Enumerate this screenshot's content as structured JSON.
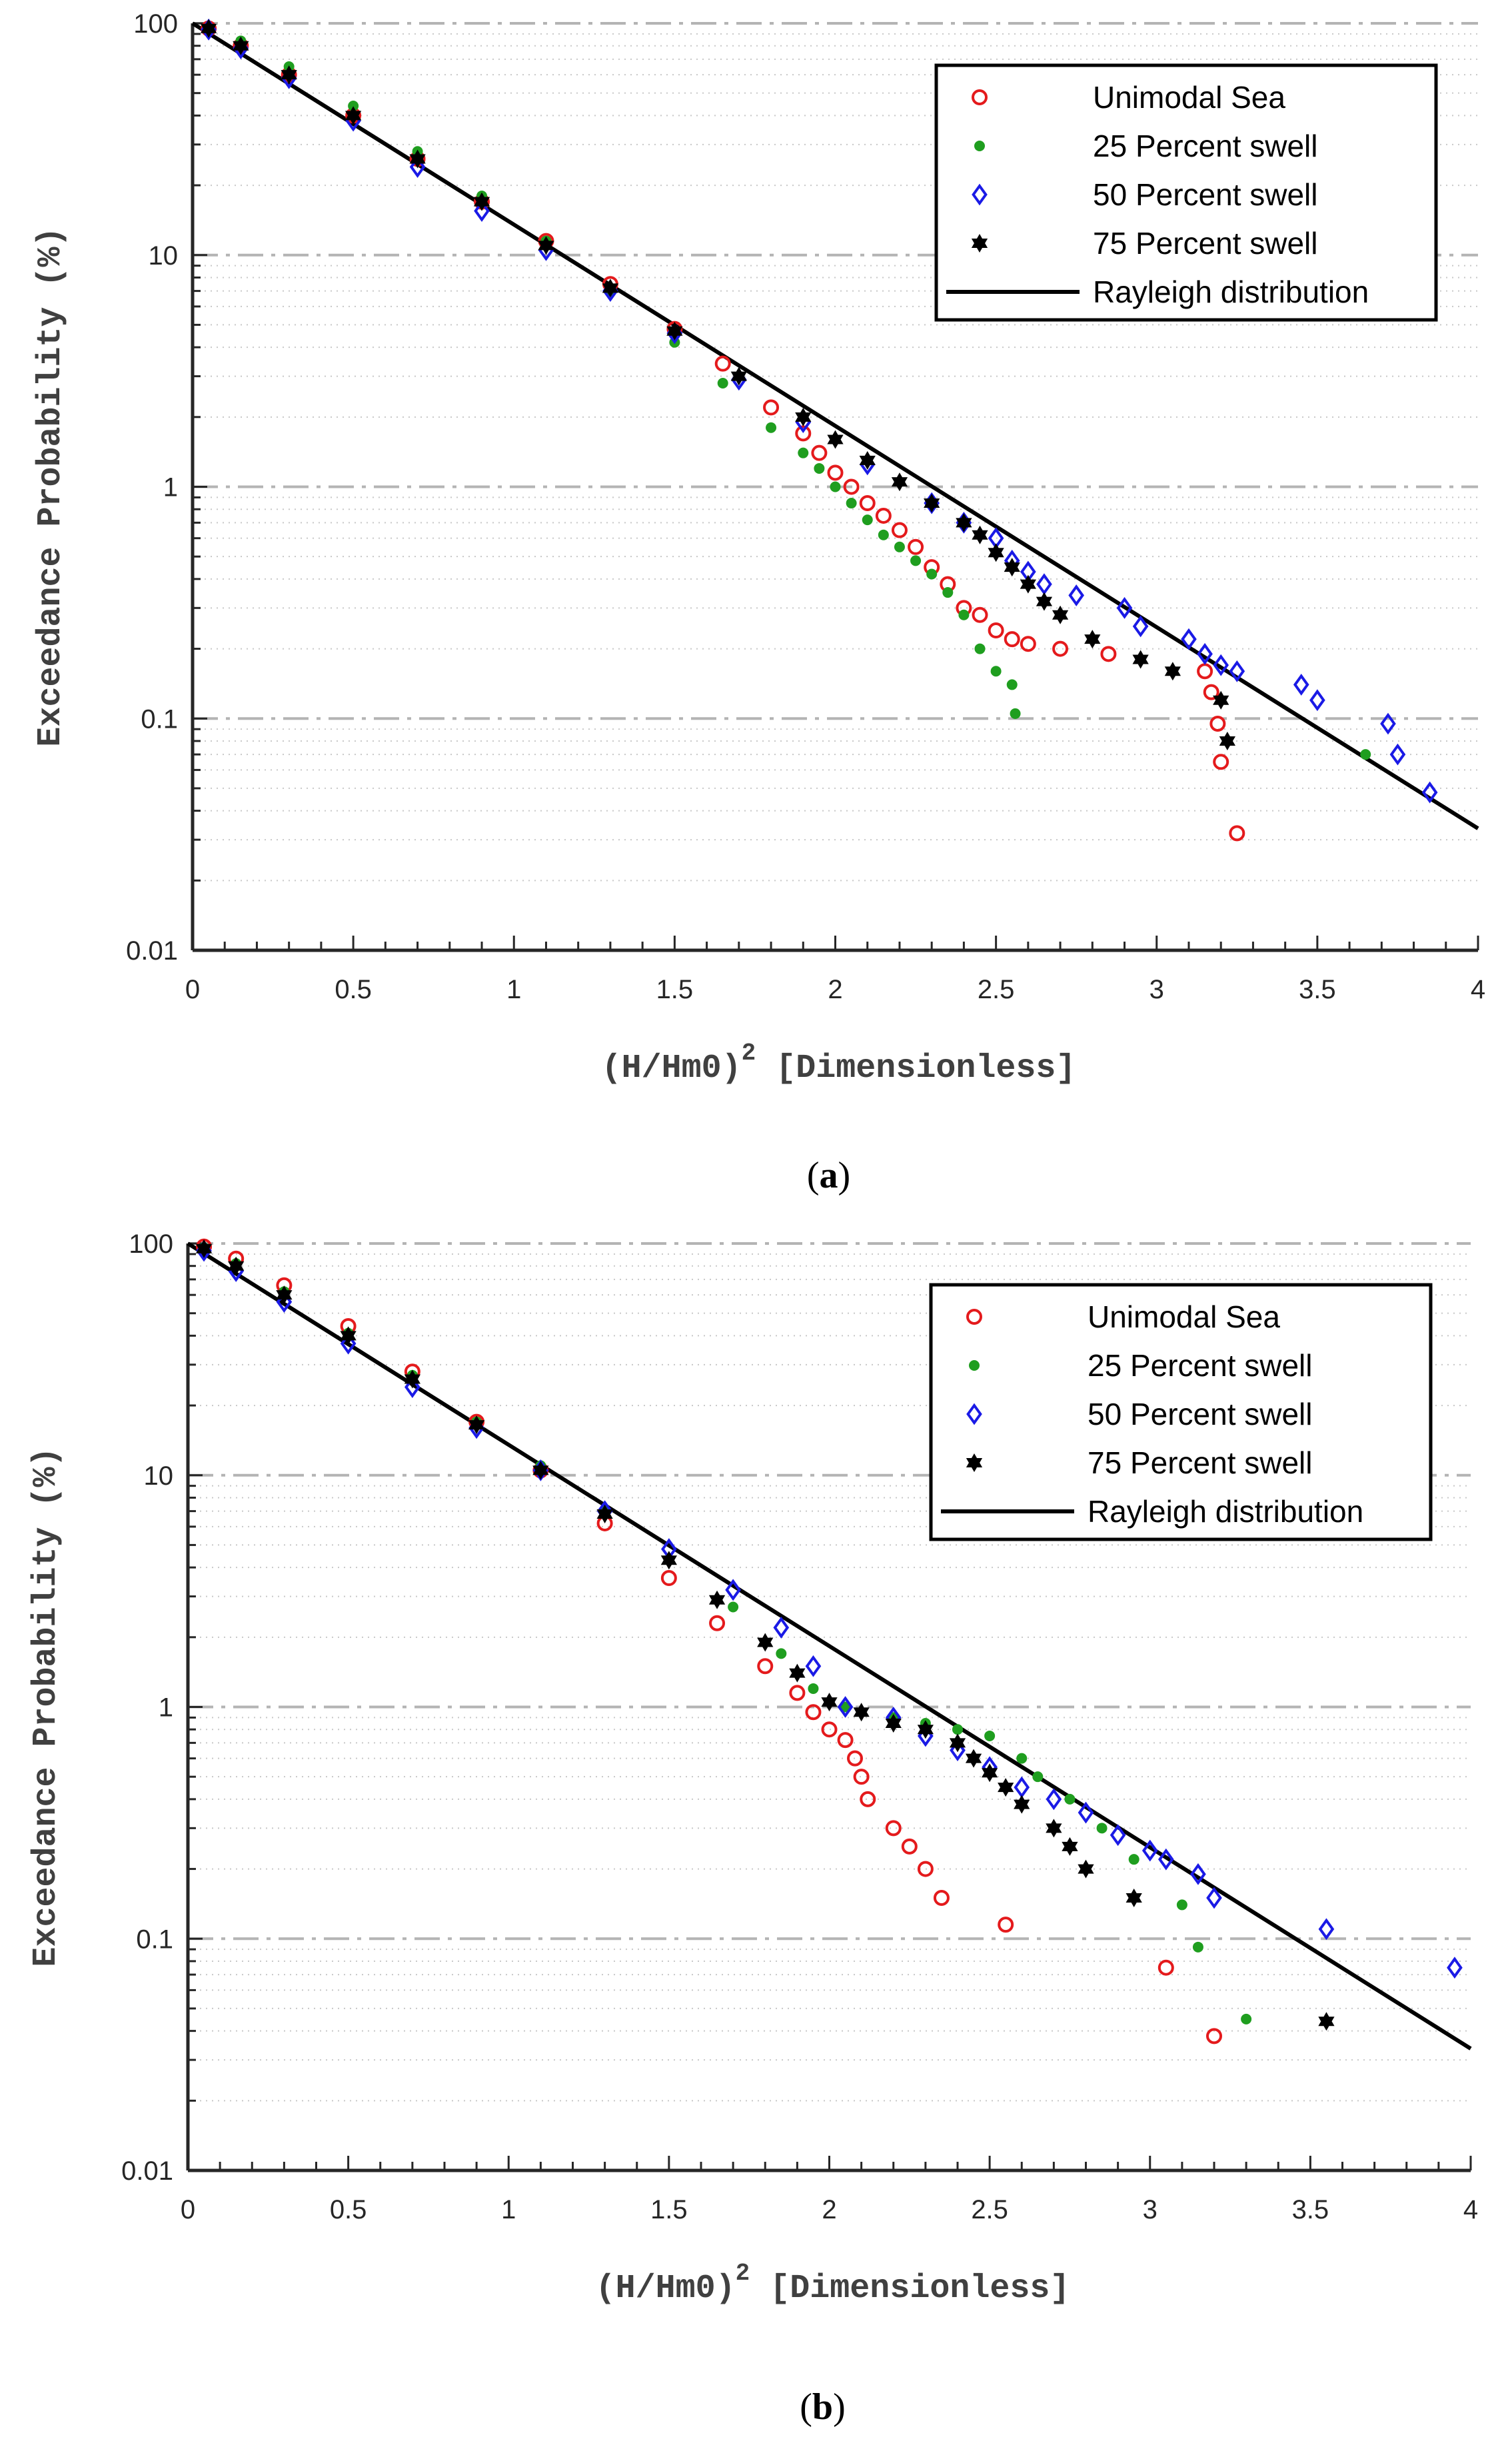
{
  "chart_data": [
    {
      "type": "scatter",
      "panel": "a",
      "caption_open": "(",
      "caption": "a",
      "caption_close": ")",
      "title": "",
      "xlabel": "(H/Hm0)",
      "xlabel_exponent": "2",
      "xlabel_suffix": "[Dimensionless]",
      "ylabel": "Exceedance Probability (%)",
      "xlim": [
        0,
        4
      ],
      "ylim": [
        0.01,
        100
      ],
      "yscale": "log",
      "grid": true,
      "legend_position": "top-right",
      "x_tick_labels": [
        "0",
        "0.5",
        "1",
        "1.5",
        "2",
        "2.5",
        "3",
        "3.5",
        "4"
      ],
      "y_tick_labels": [
        "0.01",
        "0.1",
        "1",
        "10",
        "100"
      ],
      "series": [
        {
          "name": "Unimodal Sea",
          "marker": "circle",
          "color": "#e41a1c",
          "x": [
            0.05,
            0.15,
            0.3,
            0.5,
            0.7,
            0.9,
            1.1,
            1.3,
            1.5,
            1.65,
            1.8,
            1.9,
            1.95,
            2.0,
            2.05,
            2.1,
            2.15,
            2.2,
            2.25,
            2.3,
            2.35,
            2.4,
            2.45,
            2.5,
            2.55,
            2.6,
            2.7,
            2.85,
            3.15,
            3.17,
            3.19,
            3.2,
            3.25
          ],
          "y": [
            95,
            80,
            60,
            40,
            26,
            17,
            11.5,
            7.5,
            4.8,
            3.4,
            2.2,
            1.7,
            1.4,
            1.15,
            1.0,
            0.85,
            0.75,
            0.65,
            0.55,
            0.45,
            0.38,
            0.3,
            0.28,
            0.24,
            0.22,
            0.21,
            0.2,
            0.19,
            0.16,
            0.13,
            0.095,
            0.065,
            0.032
          ]
        },
        {
          "name": "25 Percent swell",
          "marker": "dot",
          "color": "#1f9e1f",
          "x": [
            0.05,
            0.15,
            0.3,
            0.5,
            0.7,
            0.9,
            1.1,
            1.3,
            1.5,
            1.65,
            1.8,
            1.9,
            1.95,
            2.0,
            2.05,
            2.1,
            2.15,
            2.2,
            2.25,
            2.3,
            2.35,
            2.4,
            2.45,
            2.5,
            2.55,
            2.56,
            3.65
          ],
          "y": [
            96,
            84,
            65,
            44,
            28,
            18,
            11.5,
            7.0,
            4.2,
            2.8,
            1.8,
            1.4,
            1.2,
            1.0,
            0.85,
            0.72,
            0.62,
            0.55,
            0.48,
            0.42,
            0.35,
            0.28,
            0.2,
            0.16,
            0.14,
            0.105,
            0.07
          ]
        },
        {
          "name": "50 Percent swell",
          "marker": "diamond",
          "color": "#1a1ae6",
          "x": [
            0.05,
            0.15,
            0.3,
            0.5,
            0.7,
            0.9,
            1.1,
            1.3,
            1.5,
            1.7,
            1.9,
            2.1,
            2.3,
            2.4,
            2.5,
            2.55,
            2.6,
            2.65,
            2.75,
            2.9,
            2.95,
            3.1,
            3.15,
            3.2,
            3.25,
            3.45,
            3.5,
            3.72,
            3.75,
            3.85
          ],
          "y": [
            94,
            78,
            58,
            38,
            24,
            15.5,
            10.5,
            7.0,
            4.6,
            2.9,
            1.9,
            1.25,
            0.85,
            0.7,
            0.6,
            0.48,
            0.43,
            0.38,
            0.34,
            0.3,
            0.25,
            0.22,
            0.19,
            0.17,
            0.16,
            0.14,
            0.12,
            0.095,
            0.07,
            0.048
          ]
        },
        {
          "name": "75 Percent swell",
          "marker": "star",
          "color": "#000000",
          "x": [
            0.05,
            0.15,
            0.3,
            0.5,
            0.7,
            0.9,
            1.1,
            1.3,
            1.5,
            1.7,
            1.9,
            2.0,
            2.1,
            2.2,
            2.3,
            2.4,
            2.45,
            2.5,
            2.55,
            2.6,
            2.65,
            2.7,
            2.8,
            2.95,
            3.05,
            3.2,
            3.22
          ],
          "y": [
            95,
            80,
            60,
            40,
            26,
            17,
            11,
            7.2,
            4.7,
            3.0,
            2.0,
            1.6,
            1.3,
            1.05,
            0.85,
            0.7,
            0.62,
            0.52,
            0.45,
            0.38,
            0.32,
            0.28,
            0.22,
            0.18,
            0.16,
            0.12,
            0.08
          ]
        }
      ],
      "reference_line": {
        "name": "Rayleigh distribution",
        "formula": "100*exp(-2x)",
        "color": "#000000"
      }
    },
    {
      "type": "scatter",
      "panel": "b",
      "caption_open": "(",
      "caption": "b",
      "caption_close": ")",
      "title": "",
      "xlabel": "(H/Hm0)",
      "xlabel_exponent": "2",
      "xlabel_suffix": "[Dimensionless]",
      "ylabel": "Exceedance Probability (%)",
      "xlim": [
        0,
        4
      ],
      "ylim": [
        0.01,
        100
      ],
      "yscale": "log",
      "grid": true,
      "legend_position": "top-right",
      "x_tick_labels": [
        "0",
        "0.5",
        "1",
        "1.5",
        "2",
        "2.5",
        "3",
        "3.5",
        "4"
      ],
      "y_tick_labels": [
        "0.01",
        "0.1",
        "1",
        "10",
        "100"
      ],
      "series": [
        {
          "name": "Unimodal Sea",
          "marker": "circle",
          "color": "#e41a1c",
          "x": [
            0.05,
            0.15,
            0.3,
            0.5,
            0.7,
            0.9,
            1.1,
            1.3,
            1.5,
            1.65,
            1.8,
            1.9,
            1.95,
            2.0,
            2.05,
            2.08,
            2.1,
            2.12,
            2.2,
            2.25,
            2.3,
            2.35,
            2.55,
            3.05,
            3.2
          ],
          "y": [
            97,
            86,
            66,
            44,
            28,
            17,
            10.5,
            6.2,
            3.6,
            2.3,
            1.5,
            1.15,
            0.95,
            0.8,
            0.72,
            0.6,
            0.5,
            0.4,
            0.3,
            0.25,
            0.2,
            0.15,
            0.115,
            0.075,
            0.038
          ]
        },
        {
          "name": "25 Percent swell",
          "marker": "dot",
          "color": "#1f9e1f",
          "x": [
            0.05,
            0.15,
            0.3,
            0.5,
            0.7,
            0.9,
            1.1,
            1.3,
            1.5,
            1.7,
            1.85,
            1.95,
            2.05,
            2.2,
            2.3,
            2.4,
            2.5,
            2.6,
            2.65,
            2.75,
            2.85,
            2.95,
            3.1,
            3.15,
            3.3
          ],
          "y": [
            96,
            82,
            62,
            41,
            27,
            17,
            11,
            7.0,
            4.3,
            2.7,
            1.7,
            1.2,
            1.0,
            0.9,
            0.85,
            0.8,
            0.75,
            0.6,
            0.5,
            0.4,
            0.3,
            0.22,
            0.14,
            0.092,
            0.045
          ]
        },
        {
          "name": "50 Percent swell",
          "marker": "diamond",
          "color": "#1a1ae6",
          "x": [
            0.05,
            0.15,
            0.3,
            0.5,
            0.7,
            0.9,
            1.1,
            1.3,
            1.5,
            1.7,
            1.85,
            1.95,
            2.05,
            2.2,
            2.3,
            2.4,
            2.5,
            2.6,
            2.7,
            2.8,
            2.9,
            3.0,
            3.05,
            3.15,
            3.2,
            3.55,
            3.95
          ],
          "y": [
            93,
            76,
            56,
            37,
            24,
            16,
            10.5,
            7.0,
            4.8,
            3.2,
            2.2,
            1.5,
            1.0,
            0.9,
            0.75,
            0.65,
            0.55,
            0.45,
            0.4,
            0.35,
            0.28,
            0.24,
            0.22,
            0.19,
            0.15,
            0.11,
            0.075
          ]
        },
        {
          "name": "75 Percent swell",
          "marker": "star",
          "color": "#000000",
          "x": [
            0.05,
            0.15,
            0.3,
            0.5,
            0.7,
            0.9,
            1.1,
            1.3,
            1.5,
            1.65,
            1.8,
            1.9,
            2.0,
            2.1,
            2.2,
            2.3,
            2.4,
            2.45,
            2.5,
            2.55,
            2.6,
            2.7,
            2.75,
            2.8,
            2.95,
            3.55
          ],
          "y": [
            95,
            80,
            60,
            40,
            26,
            16.5,
            10.5,
            6.8,
            4.3,
            2.9,
            1.9,
            1.4,
            1.05,
            0.95,
            0.85,
            0.8,
            0.7,
            0.6,
            0.52,
            0.45,
            0.38,
            0.3,
            0.25,
            0.2,
            0.15,
            0.044
          ]
        }
      ],
      "reference_line": {
        "name": "Rayleigh distribution",
        "formula": "100*exp(-2x)",
        "color": "#000000"
      }
    }
  ]
}
